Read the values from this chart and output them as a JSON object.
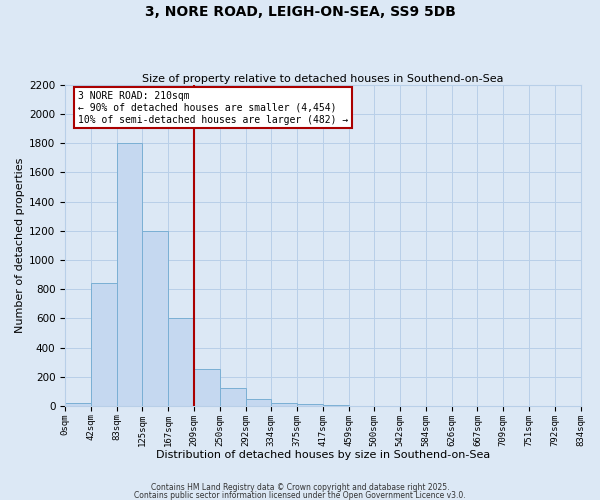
{
  "title": "3, NORE ROAD, LEIGH-ON-SEA, SS9 5DB",
  "subtitle": "Size of property relative to detached houses in Southend-on-Sea",
  "xlabel": "Distribution of detached houses by size in Southend-on-Sea",
  "ylabel": "Number of detached properties",
  "bar_values": [
    20,
    840,
    1800,
    1200,
    600,
    250,
    125,
    45,
    20,
    10,
    5,
    0,
    0,
    0,
    0,
    0,
    0,
    0,
    0,
    0
  ],
  "bar_labels": [
    "0sqm",
    "42sqm",
    "83sqm",
    "125sqm",
    "167sqm",
    "209sqm",
    "250sqm",
    "292sqm",
    "334sqm",
    "375sqm",
    "417sqm",
    "459sqm",
    "500sqm",
    "542sqm",
    "584sqm",
    "626sqm",
    "667sqm",
    "709sqm",
    "751sqm",
    "792sqm",
    "834sqm"
  ],
  "bar_color": "#c5d8f0",
  "bar_edge_color": "#7aafd4",
  "vline_x_index": 5,
  "vline_color": "#aa0000",
  "annotation_title": "3 NORE ROAD: 210sqm",
  "annotation_line1": "← 90% of detached houses are smaller (4,454)",
  "annotation_line2": "10% of semi-detached houses are larger (482) →",
  "annotation_box_color": "#ffffff",
  "annotation_box_edge": "#aa0000",
  "ylim": [
    0,
    2200
  ],
  "yticks": [
    0,
    200,
    400,
    600,
    800,
    1000,
    1200,
    1400,
    1600,
    1800,
    2000,
    2200
  ],
  "grid_color": "#b8cfe8",
  "background_color": "#dce8f5",
  "footnote1": "Contains HM Land Registry data © Crown copyright and database right 2025.",
  "footnote2": "Contains public sector information licensed under the Open Government Licence v3.0."
}
